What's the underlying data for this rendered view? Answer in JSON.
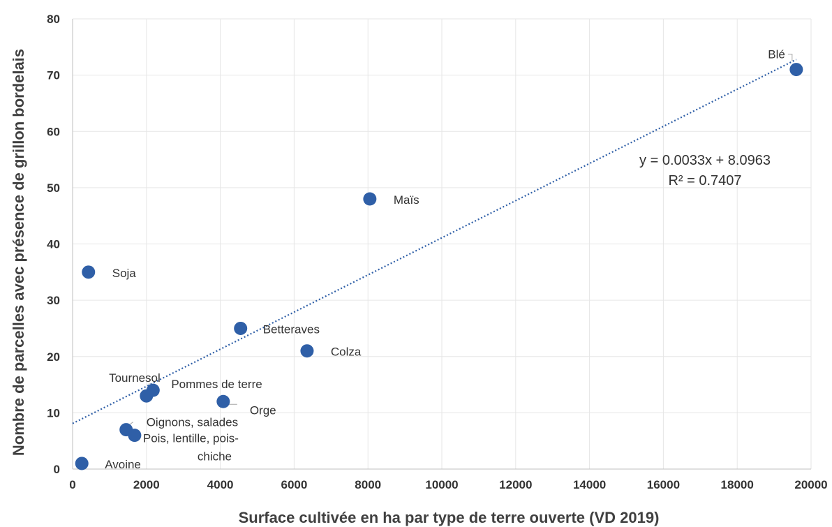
{
  "chart_data": {
    "type": "scatter",
    "xlabel": "Surface cultivée en ha par type de terre ouverte (VD 2019)",
    "ylabel": "Nombre de parcelles avec présence de grillon bordelais",
    "xlim": [
      0,
      20000
    ],
    "ylim": [
      0,
      80
    ],
    "xticks": [
      0,
      2000,
      4000,
      6000,
      8000,
      10000,
      12000,
      14000,
      16000,
      18000,
      20000
    ],
    "yticks": [
      0,
      10,
      20,
      30,
      40,
      50,
      60,
      70,
      80
    ],
    "grid": true,
    "marker_color": "#2f5fa7",
    "trendline_color": "#2f5fa7",
    "points": [
      {
        "label": "Blé",
        "x": 19600,
        "y": 71
      },
      {
        "label": "Maïs",
        "x": 8050,
        "y": 48
      },
      {
        "label": "Soja",
        "x": 430,
        "y": 35
      },
      {
        "label": "Betteraves",
        "x": 4550,
        "y": 25
      },
      {
        "label": "Colza",
        "x": 6350,
        "y": 21
      },
      {
        "label": "Tournesol",
        "x": 2000,
        "y": 13
      },
      {
        "label": "Pommes de terre",
        "x": 2180,
        "y": 14
      },
      {
        "label": "Orge",
        "x": 4080,
        "y": 12
      },
      {
        "label": "Oignons, salades",
        "x": 1450,
        "y": 7
      },
      {
        "label": "Pois, lentille, pois-chiche",
        "x": 1680,
        "y": 6
      },
      {
        "label": "Avoine",
        "x": 250,
        "y": 1
      }
    ],
    "trendline": {
      "type": "linear",
      "slope": 0.0033,
      "intercept": 8.0963,
      "x_range": [
        0,
        19600
      ],
      "equation": "y = 0.0033x + 8.0963",
      "r_squared": "R² = 0.7407"
    }
  }
}
